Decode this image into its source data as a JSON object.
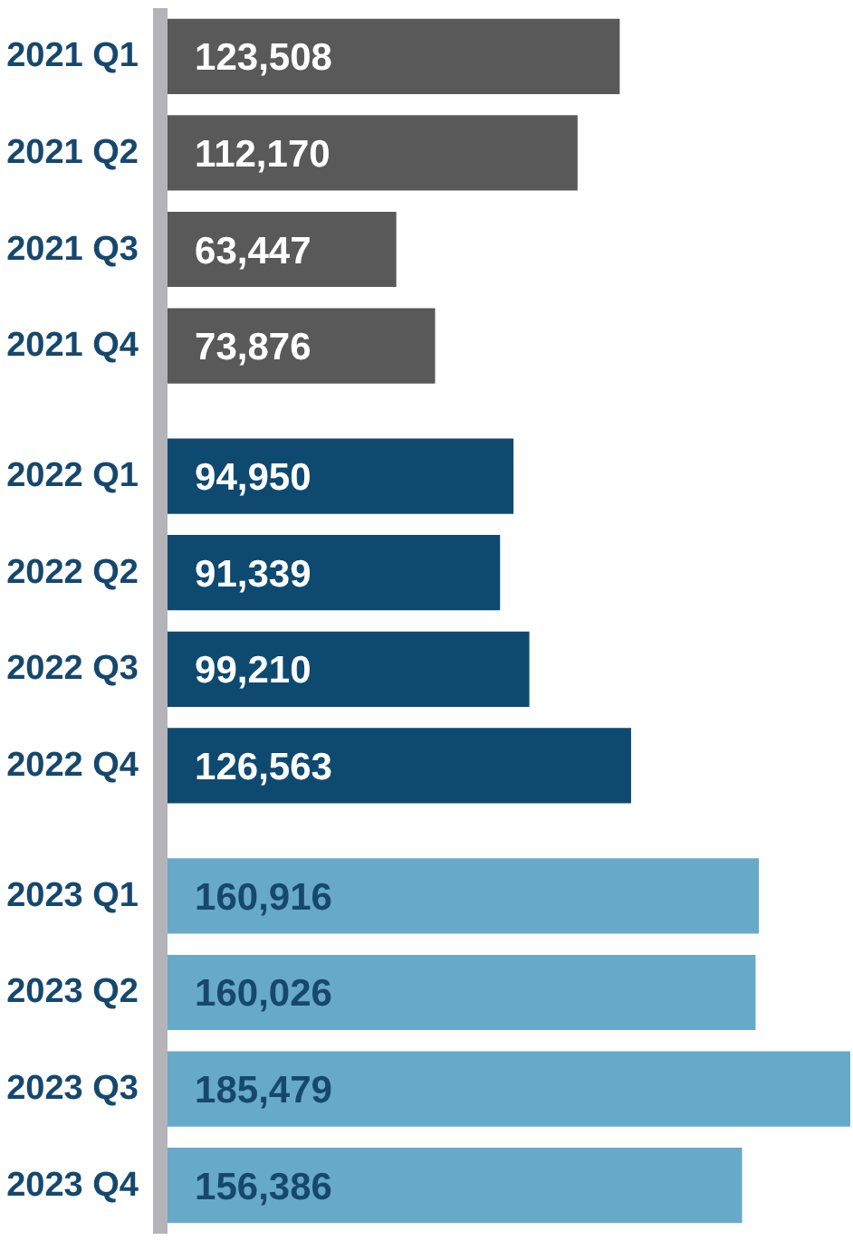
{
  "chart_data": {
    "type": "bar",
    "orientation": "horizontal",
    "categories": [
      "2021 Q1",
      "2021 Q2",
      "2021 Q3",
      "2021 Q4",
      "2022 Q1",
      "2022 Q2",
      "2022 Q3",
      "2022 Q4",
      "2023 Q1",
      "2023 Q2",
      "2023 Q3",
      "2023 Q4"
    ],
    "series": [
      {
        "color": "#595959",
        "values": [
          123508,
          112170,
          63447,
          73876,
          null,
          null,
          null,
          null,
          null,
          null,
          null,
          null
        ],
        "value_labels": [
          "123,508",
          "112,170",
          "63,447",
          "73,876",
          null,
          null,
          null,
          null,
          null,
          null,
          null,
          null
        ]
      },
      {
        "color": "#0e4a70",
        "values": [
          null,
          null,
          null,
          null,
          94950,
          91339,
          99210,
          126563,
          null,
          null,
          null,
          null
        ],
        "value_labels": [
          null,
          null,
          null,
          null,
          "94,950",
          "91,339",
          "99,210",
          "126,563",
          null,
          null,
          null,
          null
        ]
      },
      {
        "color": "#67a9c9",
        "values": [
          null,
          null,
          null,
          null,
          null,
          null,
          null,
          null,
          160916,
          160026,
          185479,
          156386
        ],
        "value_labels": [
          null,
          null,
          null,
          null,
          null,
          null,
          null,
          null,
          "160,916",
          "160,026",
          "185,479",
          "156,386"
        ]
      }
    ]
  }
}
